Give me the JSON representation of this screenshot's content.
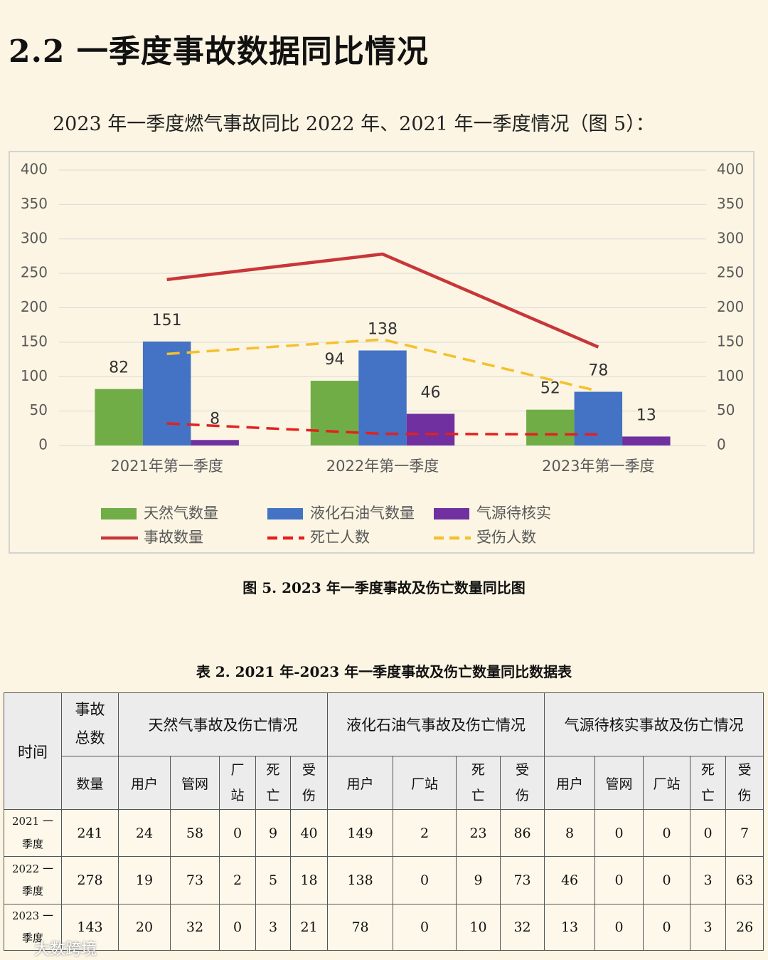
{
  "heading": "2.2 一季度事故数据同比情况",
  "intro": "2023 年一季度燃气事故同比 2022 年、2021 年一季度情况（图 5）：",
  "chart_data": {
    "type": "bar",
    "categories": [
      "2021年第一季度",
      "2022年第一季度",
      "2023年第一季度"
    ],
    "series": [
      {
        "name": "天然气数量",
        "color": "#70ad47",
        "values": [
          82,
          94,
          52
        ]
      },
      {
        "name": "液化石油气数量",
        "color": "#4472c4",
        "values": [
          151,
          138,
          78
        ]
      },
      {
        "name": "气源待核实",
        "color": "#7030a0",
        "values": [
          8,
          46,
          13
        ]
      },
      {
        "name": "事故数量",
        "color": "#c8363a",
        "mark": "line",
        "values": [
          241,
          278,
          143
        ]
      },
      {
        "name": "死亡人数",
        "color": "#e3201f",
        "mark": "line",
        "dash": "dashed",
        "values": [
          32,
          17,
          16
        ]
      },
      {
        "name": "受伤人数",
        "color": "#f5c02c",
        "mark": "line",
        "dash": "dashed",
        "values": [
          133,
          154,
          79
        ]
      }
    ],
    "ylim": [
      0,
      400
    ],
    "yticks": [
      0,
      50,
      100,
      150,
      200,
      250,
      300,
      350,
      400
    ],
    "y2lim": [
      0,
      400
    ],
    "y2ticks": [
      0,
      50,
      100,
      150,
      200,
      250,
      300,
      350,
      400
    ],
    "grid": true,
    "legend": "bottom"
  },
  "caption": "图 5.  2023 年一季度事故及伤亡数量同比图",
  "table": {
    "caption": "表 2.  2021 年-2023 年一季度事故及伤亡数量同比数据表",
    "header": [
      "时间",
      "事故总数",
      "天然气事故及伤亡情况",
      "液化石油气事故及伤亡情况",
      "气源待核实事故及伤亡情况"
    ],
    "subheader": [
      "数量",
      "用户",
      "管网",
      "厂站",
      "死亡",
      "受伤",
      "用户",
      "厂站",
      "死亡",
      "受伤",
      "用户",
      "管网",
      "厂站",
      "死亡",
      "受伤"
    ],
    "rows": [
      [
        "2021 一季度",
        241,
        24,
        58,
        0,
        9,
        40,
        149,
        2,
        23,
        86,
        8,
        0,
        0,
        0,
        7
      ],
      [
        "2022 一季度",
        278,
        19,
        73,
        2,
        5,
        18,
        138,
        0,
        9,
        73,
        46,
        0,
        0,
        3,
        63
      ],
      [
        "2023 一季度",
        143,
        20,
        32,
        0,
        3,
        21,
        78,
        0,
        10,
        32,
        13,
        0,
        0,
        3,
        26
      ]
    ]
  },
  "watermark": "大数跨境"
}
